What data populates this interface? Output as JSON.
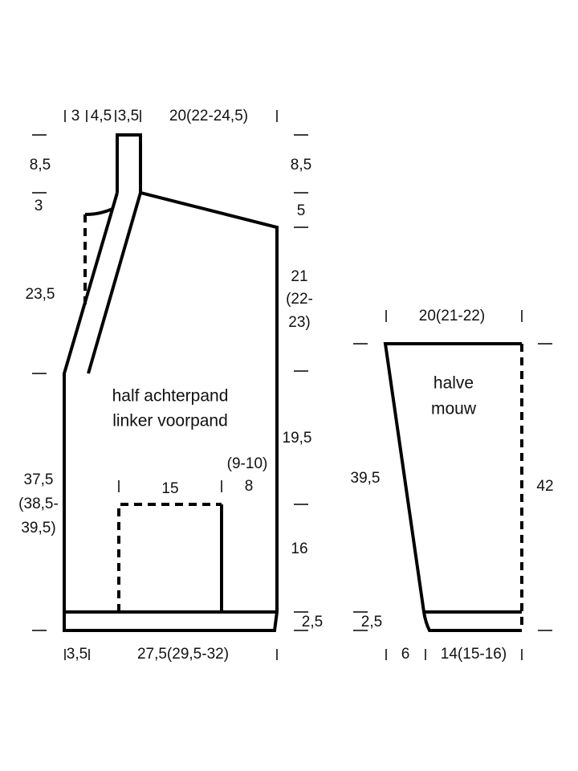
{
  "body": {
    "title": [
      "half achterpand",
      "linker voorpand"
    ],
    "top_measures": [
      "3",
      "4,5",
      "3,5",
      "20(22-24,5)"
    ],
    "left_measures": [
      "8,5",
      "3",
      "23,5",
      "37,5",
      "(38,5-",
      "39,5)"
    ],
    "right_measures": [
      "8,5",
      "5",
      "21",
      "(22-",
      "23)",
      "19,5",
      "16",
      "2,5"
    ],
    "pocket_measures": [
      "15",
      "(9-10)",
      "8"
    ],
    "bottom_measures": [
      "3,5",
      "27,5(29,5-32)"
    ]
  },
  "sleeve": {
    "title": [
      "halve",
      "mouw"
    ],
    "top_measure": "20(21-22)",
    "left_measures": [
      "39,5",
      "2,5"
    ],
    "right_measure": "42",
    "bottom_measures": [
      "6",
      "14(15-16)"
    ]
  }
}
